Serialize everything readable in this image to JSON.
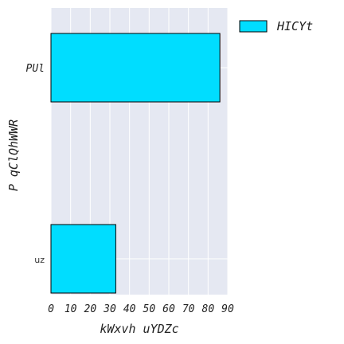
{
  "chart_data": {
    "type": "bar",
    "orientation": "horizontal",
    "categories": [
      "PUl",
      "uz"
    ],
    "series": [
      {
        "name": "HICYt",
        "values": [
          86,
          33
        ]
      }
    ],
    "xlabel": "kWxvh uYDZc",
    "ylabel": "P qClQhWWR",
    "xlim": [
      0,
      90
    ],
    "xticks": [
      0,
      10,
      20,
      30,
      40,
      50,
      60,
      70,
      80,
      90
    ],
    "grid": true,
    "legend_position": "outside-top-right",
    "colors": {
      "bar": "#00DDFF",
      "bar_edge": "#000000",
      "plot_background": "#E5E8F2",
      "grid": "#FFFFFF"
    }
  }
}
